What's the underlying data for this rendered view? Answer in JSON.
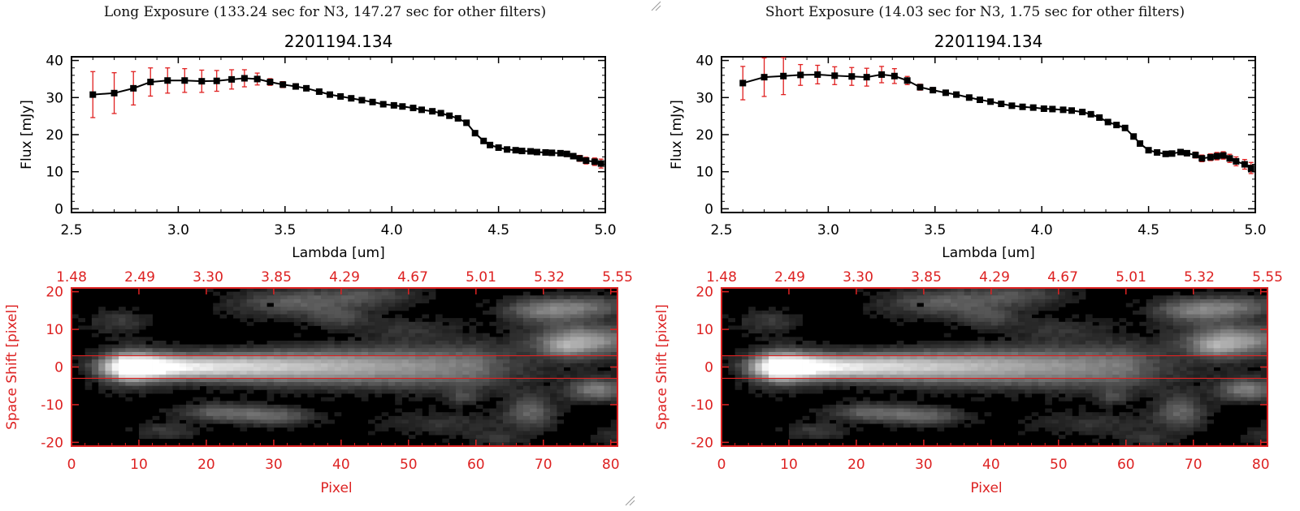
{
  "colors": {
    "axis": "#000000",
    "marker": "#000000",
    "error": "#e02020",
    "image_axis": "#dd2222"
  },
  "panels": [
    {
      "exposure_title": "Long Exposure (133.24 sec for N3, 147.27 sec for other filters)",
      "chart_data": [
        {
          "type": "line",
          "title": "2201194.134",
          "xlabel": "Lambda [um]",
          "ylabel": "Flux [mJy]",
          "xlim": [
            2.5,
            5.0
          ],
          "ylim": [
            -1,
            41
          ],
          "xticks": [
            "2.5",
            "3.0",
            "3.5",
            "4.0",
            "4.5",
            "5.0"
          ],
          "yticks": [
            "0",
            "10",
            "20",
            "30",
            "40"
          ],
          "series": [
            {
              "x": [
                2.6,
                2.7,
                2.79,
                2.87,
                2.95,
                3.03,
                3.11,
                3.18,
                3.25,
                3.31,
                3.37,
                3.43,
                3.49,
                3.55,
                3.6,
                3.66,
                3.71,
                3.76,
                3.81,
                3.86,
                3.91,
                3.96,
                4.01,
                4.05,
                4.1,
                4.14,
                4.19,
                4.23,
                4.27,
                4.31,
                4.35,
                4.39,
                4.43,
                4.46,
                4.5,
                4.54,
                4.58,
                4.61,
                4.65,
                4.68,
                4.72,
                4.75,
                4.79,
                4.82,
                4.85,
                4.88,
                4.91,
                4.95,
                4.98
              ],
              "y": [
                30.8,
                31.2,
                32.5,
                34.2,
                34.6,
                34.6,
                34.4,
                34.5,
                34.9,
                35.2,
                35.0,
                34.2,
                33.5,
                33.0,
                32.5,
                31.6,
                30.8,
                30.3,
                29.8,
                29.3,
                28.8,
                28.2,
                27.9,
                27.6,
                27.2,
                26.7,
                26.3,
                25.8,
                25.1,
                24.4,
                23.2,
                20.4,
                18.3,
                17.2,
                16.5,
                16.0,
                15.8,
                15.6,
                15.5,
                15.3,
                15.2,
                15.1,
                15.0,
                14.8,
                14.2,
                13.6,
                13.0,
                12.7,
                12.2
              ],
              "err": [
                6.2,
                5.5,
                4.5,
                3.8,
                3.4,
                3.2,
                3.0,
                2.8,
                2.6,
                2.3,
                1.6,
                0.9,
                0.8,
                0.7,
                0.6,
                0.6,
                0.6,
                0.5,
                0.5,
                0.5,
                0.5,
                0.5,
                0.5,
                0.5,
                0.5,
                0.5,
                0.5,
                0.5,
                0.6,
                0.6,
                0.6,
                0.6,
                0.6,
                0.6,
                0.6,
                0.6,
                0.6,
                0.6,
                0.6,
                0.6,
                0.6,
                0.6,
                0.6,
                0.7,
                0.7,
                0.8,
                0.9,
                1.0,
                1.2
              ]
            }
          ]
        },
        {
          "type": "heatmap",
          "xlabel": "Pixel",
          "ylabel": "Space Shift [pixel]",
          "xlim": [
            0,
            81
          ],
          "ylim": [
            -21,
            21
          ],
          "xticks": [
            "0",
            "10",
            "20",
            "30",
            "40",
            "50",
            "60",
            "70",
            "80"
          ],
          "yticks": [
            "-20",
            "-10",
            "0",
            "10",
            "20"
          ],
          "top_xticks": [
            "1.48",
            "2.49",
            "3.30",
            "3.85",
            "4.29",
            "4.67",
            "5.01",
            "5.32",
            "5.55"
          ],
          "aperture_lines": [
            3,
            -3
          ]
        }
      ]
    },
    {
      "exposure_title": "Short Exposure (14.03 sec for N3, 1.75 sec for other filters)",
      "chart_data": [
        {
          "type": "line",
          "title": "2201194.134",
          "xlabel": "Lambda [um]",
          "ylabel": "Flux [mJy]",
          "xlim": [
            2.5,
            5.0
          ],
          "ylim": [
            -1,
            41
          ],
          "xticks": [
            "2.5",
            "3.0",
            "3.5",
            "4.0",
            "4.5",
            "5.0"
          ],
          "yticks": [
            "0",
            "10",
            "20",
            "30",
            "40"
          ],
          "series": [
            {
              "x": [
                2.6,
                2.7,
                2.79,
                2.87,
                2.95,
                3.03,
                3.11,
                3.18,
                3.25,
                3.31,
                3.37,
                3.43,
                3.49,
                3.55,
                3.6,
                3.66,
                3.71,
                3.76,
                3.81,
                3.86,
                3.91,
                3.96,
                4.01,
                4.05,
                4.1,
                4.14,
                4.19,
                4.23,
                4.27,
                4.31,
                4.35,
                4.39,
                4.43,
                4.46,
                4.5,
                4.54,
                4.58,
                4.61,
                4.65,
                4.68,
                4.72,
                4.75,
                4.79,
                4.82,
                4.85,
                4.88,
                4.91,
                4.95,
                4.98
              ],
              "y": [
                33.9,
                35.5,
                35.8,
                36.1,
                36.2,
                35.9,
                35.7,
                35.5,
                36.2,
                35.8,
                34.6,
                32.8,
                32.0,
                31.3,
                30.8,
                30.0,
                29.4,
                28.9,
                28.3,
                27.8,
                27.5,
                27.3,
                27.0,
                26.9,
                26.7,
                26.5,
                26.1,
                25.5,
                24.6,
                23.4,
                22.6,
                21.8,
                19.5,
                17.6,
                15.8,
                15.2,
                14.8,
                14.9,
                15.3,
                15.0,
                14.5,
                13.6,
                13.9,
                14.2,
                14.4,
                13.6,
                12.8,
                12.0,
                11.0
              ],
              "err": [
                4.5,
                5.2,
                5.0,
                2.8,
                2.5,
                2.4,
                2.4,
                2.4,
                2.2,
                2.0,
                1.1,
                0.8,
                0.7,
                0.6,
                0.6,
                0.6,
                0.6,
                0.5,
                0.5,
                0.5,
                0.5,
                0.5,
                0.5,
                0.5,
                0.5,
                0.5,
                0.5,
                0.5,
                0.6,
                0.6,
                0.6,
                0.6,
                0.6,
                0.6,
                0.6,
                0.6,
                0.6,
                0.6,
                0.7,
                0.7,
                0.8,
                0.9,
                0.9,
                1.0,
                1.0,
                1.1,
                1.2,
                1.3,
                1.5
              ]
            }
          ]
        },
        {
          "type": "heatmap",
          "xlabel": "Pixel",
          "ylabel": "Space Shift [pixel]",
          "xlim": [
            0,
            81
          ],
          "ylim": [
            -21,
            21
          ],
          "xticks": [
            "0",
            "10",
            "20",
            "30",
            "40",
            "50",
            "60",
            "70",
            "80"
          ],
          "yticks": [
            "-20",
            "-10",
            "0",
            "10",
            "20"
          ],
          "top_xticks": [
            "1.48",
            "2.49",
            "3.30",
            "3.85",
            "4.29",
            "4.67",
            "5.01",
            "5.32",
            "5.55"
          ],
          "aperture_lines": [
            3,
            -3
          ]
        }
      ]
    }
  ]
}
